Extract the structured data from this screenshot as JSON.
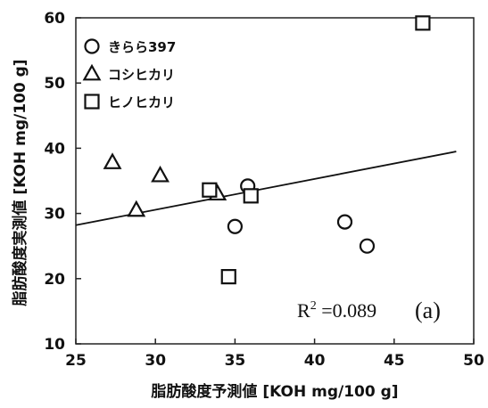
{
  "chart_data": {
    "type": "scatter",
    "xlabel": "脂肪酸度予測値 [KOH mg/100 g]",
    "ylabel": "脂肪酸度実測値 [KOH mg/100 g]",
    "xlim": [
      25,
      50
    ],
    "ylim": [
      10,
      60
    ],
    "xticks": [
      "25",
      "30",
      "35",
      "40",
      "45",
      "50"
    ],
    "yticks": [
      "10",
      "20",
      "30",
      "40",
      "50",
      "60"
    ],
    "legend_position": "top-left",
    "series": [
      {
        "name": "きらら397",
        "marker": "circle",
        "points": [
          {
            "x": 35.8,
            "y": 34.2
          },
          {
            "x": 35.0,
            "y": 28.0
          },
          {
            "x": 41.9,
            "y": 28.7
          },
          {
            "x": 43.3,
            "y": 25.0
          }
        ]
      },
      {
        "name": "コシヒカリ",
        "marker": "triangle",
        "points": [
          {
            "x": 27.3,
            "y": 37.8
          },
          {
            "x": 28.8,
            "y": 30.5
          },
          {
            "x": 30.3,
            "y": 35.8
          },
          {
            "x": 33.9,
            "y": 33.0
          }
        ]
      },
      {
        "name": "ヒノヒカリ",
        "marker": "square",
        "points": [
          {
            "x": 33.4,
            "y": 33.6
          },
          {
            "x": 36.0,
            "y": 32.7
          },
          {
            "x": 34.6,
            "y": 20.3
          },
          {
            "x": 46.8,
            "y": 59.2
          }
        ]
      }
    ],
    "regression_line": {
      "x": [
        25,
        48.9
      ],
      "y": [
        28.2,
        39.5
      ]
    },
    "annotations": {
      "r2_prefix": "R",
      "r2_exp": "2",
      "r2_value": " =0.089",
      "panel_label": "(a)"
    }
  }
}
